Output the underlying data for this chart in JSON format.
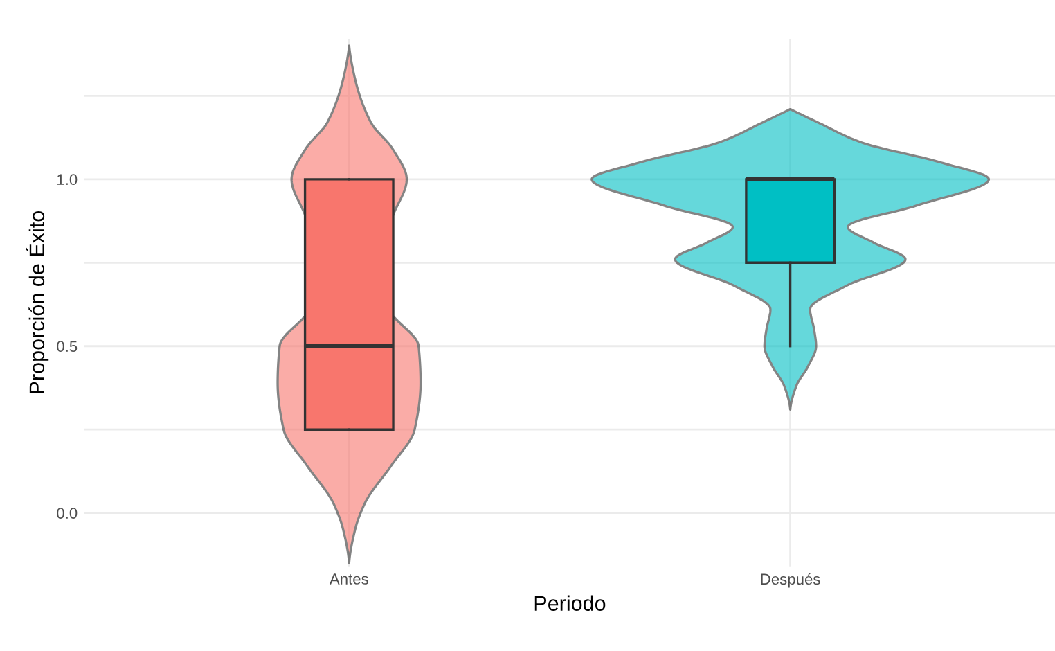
{
  "chart_data": {
    "type": "box",
    "xlabel": "Periodo",
    "ylabel": "Proporción de Éxito",
    "categories": [
      "Antes",
      "Después"
    ],
    "colors": [
      "#f8766d",
      "#00bfc4"
    ],
    "boxes": [
      {
        "low": 0.25,
        "q1": 0.25,
        "median": 0.5,
        "q3": 1.0,
        "high": 1.0
      },
      {
        "low": 0.5,
        "q1": 0.75,
        "median": 1.0,
        "q3": 1.0,
        "high": 1.0
      }
    ],
    "ylim": [
      -0.16,
      1.42
    ],
    "yticks": [
      {
        "value": 0,
        "label": "0.0"
      },
      {
        "value": 0.25,
        "label": null
      },
      {
        "value": 0.5,
        "label": "0.5"
      },
      {
        "value": 0.75,
        "label": null
      },
      {
        "value": 1,
        "label": "1.0"
      },
      {
        "value": 1.25,
        "label": null
      }
    ],
    "grid": true
  }
}
